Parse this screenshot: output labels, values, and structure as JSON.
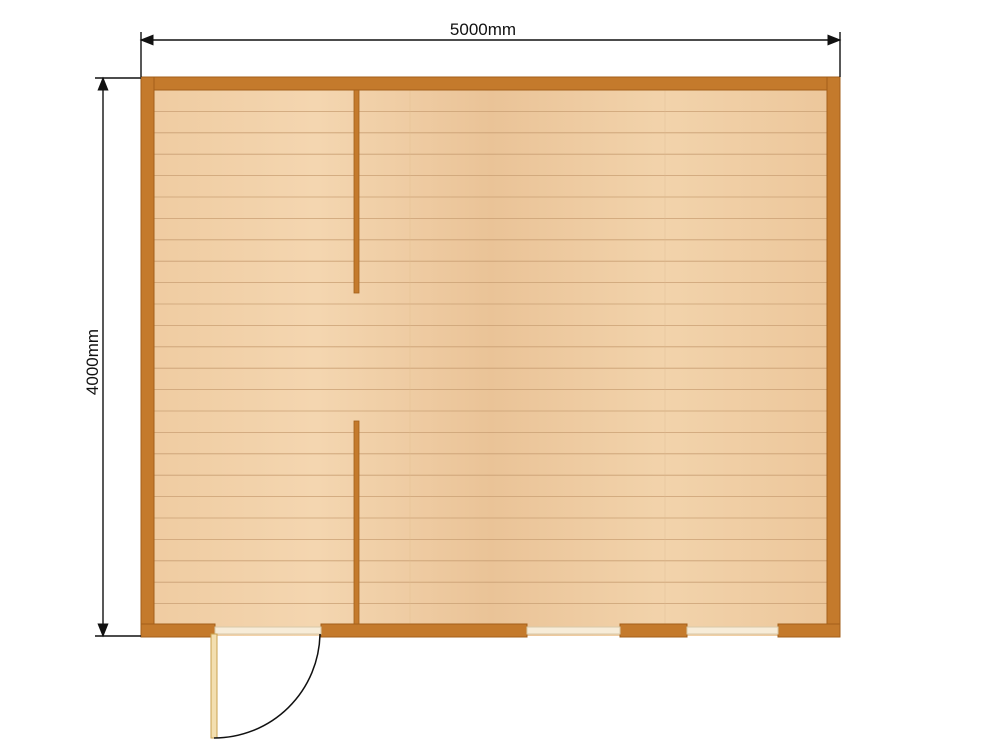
{
  "dimensions": {
    "width_label": "5000mm",
    "height_label": "4000mm"
  },
  "colors": {
    "wall": "#c47a2c",
    "wall_edge": "#a35f1a",
    "floor_light": "#f0cfa4",
    "floor_dark": "#e2b988",
    "plank_line": "#caa074",
    "dimension_line": "#111111",
    "door_leaf": "#f3dfb0",
    "door_swing": "#111111",
    "background": "#ffffff"
  }
}
